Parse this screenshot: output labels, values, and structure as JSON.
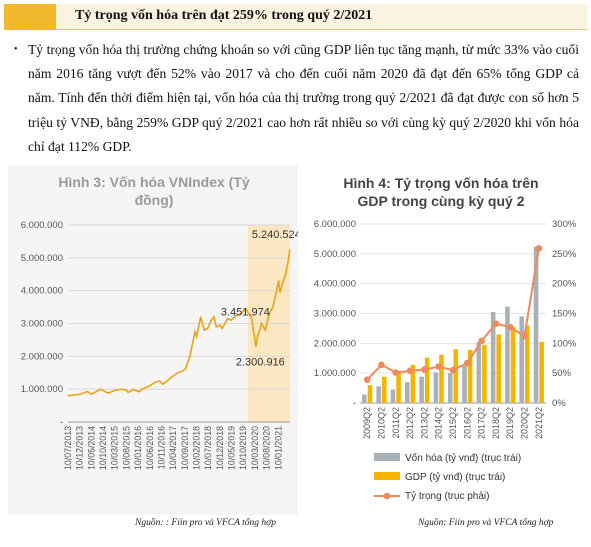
{
  "header": {
    "title": "Tỷ trọng vốn hóa trên đạt 259% trong quý 2/2021"
  },
  "paragraph": {
    "bullet": "•",
    "text": "Tỷ trọng vốn hóa thị trường chứng khoán so với cũng GDP liên tục tăng mạnh, từ mức 33% vào cuối năm 2016 tăng vượt đến 52% vào 2017 và cho đến cuối năm 2020 đã đạt đến 65% tổng GDP cả năm. Tính đến thời điểm hiện tại, vốn hóa của thị trường trong quý 2/2021 đã đạt được con số hơn 5 triệu tỷ VNĐ, bằng 259% GDP quý 2/2021 cao hơn rất nhiều so với cùng kỳ quý 2/2020 khi vốn hóa chỉ đạt 112% GDP."
  },
  "colors": {
    "accent": "#f2b82e",
    "header_bg": "#fbf3e2",
    "line_gold": "#e8a317",
    "highlight": "#fbe7c2",
    "bar_grey": "#a9b0b6",
    "bar_gold": "#f4b400",
    "ratio_line": "#ee8a5c",
    "grid": "#dcdcdc"
  },
  "sources": {
    "left": "Nguồn: : Fiin pro  và VFCA tổng hợp",
    "right": "Nguồn: Fiin pro và VFCA tổng hợp"
  },
  "chart_data": [
    {
      "type": "line",
      "title": "Hình 3: Vốn hóa VNIndex (Tỷ đồng)",
      "title_lines": [
        "Hình 3: Vốn hóa VNIndex (Tỷ",
        "đồng)"
      ],
      "ylim": [
        0,
        6000000
      ],
      "ytick_labels": [
        "-",
        "1.000.000",
        "2.000.000",
        "3.000.000",
        "4.000.000",
        "5.000.000",
        "6.000.000"
      ],
      "ytick_values": [
        0,
        1000000,
        2000000,
        3000000,
        4000000,
        5000000,
        6000000
      ],
      "xtick_labels": [
        "10/07/2013",
        "10/12/2013",
        "10/05/2014",
        "10/10/2014",
        "10/03/2015",
        "10/08/2015",
        "10/01/2016",
        "10/06/2016",
        "10/11/2016",
        "10/04/2017",
        "10/09/2017",
        "10/02/2018",
        "10/07/2018",
        "10/12/2018",
        "10/05/2019",
        "10/10/2019",
        "10/03/2020",
        "10/08/2020",
        "10/01/2021"
      ],
      "highlight_range": [
        "10/12/2019",
        "10/06/2021"
      ],
      "annotations": [
        {
          "label": "5.240.524",
          "date": "2021-06-10",
          "value": 5240524
        },
        {
          "label": "3.451.974",
          "date": "2019-11-15",
          "value": 3451974
        },
        {
          "label": "2.300.916",
          "date": "2020-03-24",
          "value": 2300916
        }
      ],
      "series": [
        {
          "points": [
            [
              "2013-07-10",
              800000
            ],
            [
              "2013-09-15",
              820000
            ],
            [
              "2013-12-10",
              840000
            ],
            [
              "2014-03-20",
              930000
            ],
            [
              "2014-05-10",
              850000
            ],
            [
              "2014-07-15",
              930000
            ],
            [
              "2014-09-05",
              1000000
            ],
            [
              "2014-10-10",
              960000
            ],
            [
              "2014-12-15",
              880000
            ],
            [
              "2015-03-10",
              960000
            ],
            [
              "2015-06-10",
              1000000
            ],
            [
              "2015-08-10",
              970000
            ],
            [
              "2015-09-01",
              900000
            ],
            [
              "2015-11-10",
              990000
            ],
            [
              "2016-01-20",
              920000
            ],
            [
              "2016-03-10",
              1010000
            ],
            [
              "2016-06-06",
              1100000
            ],
            [
              "2016-08-10",
              1200000
            ],
            [
              "2016-10-15",
              1250000
            ],
            [
              "2016-11-25",
              1150000
            ],
            [
              "2017-01-10",
              1220000
            ],
            [
              "2017-03-10",
              1350000
            ],
            [
              "2017-06-10",
              1500000
            ],
            [
              "2017-08-10",
              1550000
            ],
            [
              "2017-09-20",
              1620000
            ],
            [
              "2017-11-15",
              2000000
            ],
            [
              "2017-12-20",
              2400000
            ],
            [
              "2018-01-20",
              2750000
            ],
            [
              "2018-02-10",
              2600000
            ],
            [
              "2018-04-05",
              3200000
            ],
            [
              "2018-05-20",
              2800000
            ],
            [
              "2018-07-05",
              2850000
            ],
            [
              "2018-08-20",
              3100000
            ],
            [
              "2018-09-25",
              3200000
            ],
            [
              "2018-10-25",
              2900000
            ],
            [
              "2018-12-10",
              2950000
            ],
            [
              "2019-01-10",
              2850000
            ],
            [
              "2019-03-20",
              3150000
            ],
            [
              "2019-05-10",
              3100000
            ],
            [
              "2019-07-15",
              3250000
            ],
            [
              "2019-09-15",
              3300000
            ],
            [
              "2019-11-15",
              3451974
            ],
            [
              "2019-12-20",
              3300000
            ],
            [
              "2020-01-20",
              3250000
            ],
            [
              "2020-02-15",
              2900000
            ],
            [
              "2020-03-24",
              2300916
            ],
            [
              "2020-04-15",
              2600000
            ],
            [
              "2020-06-05",
              3000000
            ],
            [
              "2020-07-25",
              2800000
            ],
            [
              "2020-09-15",
              3300000
            ],
            [
              "2020-11-01",
              3500000
            ],
            [
              "2020-12-10",
              3900000
            ],
            [
              "2021-01-15",
              4300000
            ],
            [
              "2021-02-01",
              3950000
            ],
            [
              "2021-03-10",
              4250000
            ],
            [
              "2021-04-15",
              4500000
            ],
            [
              "2021-05-15",
              4850000
            ],
            [
              "2021-06-10",
              5240524
            ]
          ]
        }
      ]
    },
    {
      "type": "bar",
      "title": "Hình 4: Tỷ trọng vốn hóa trên GDP trong cùng kỳ quý 2",
      "title_lines": [
        "Hình 4: Tỷ  trọng vốn hóa trên",
        "GDP trong cùng kỳ quý 2"
      ],
      "categories": [
        "2009Q2",
        "2010Q2",
        "2011Q2",
        "2012Q2",
        "2013Q2",
        "2014Q2",
        "2015Q2",
        "2016Q2",
        "2017Q2",
        "2018Q2",
        "2019Q2",
        "2020Q2",
        "2021Q2"
      ],
      "ylim": [
        0,
        6000000
      ],
      "ytick_labels": [
        "-",
        "1.000.000",
        "2.000.000",
        "3.000.000",
        "4.000.000",
        "5.000.000",
        "6.000.000"
      ],
      "ytick_values": [
        0,
        1000000,
        2000000,
        3000000,
        4000000,
        5000000,
        6000000
      ],
      "y2lim": [
        0,
        300
      ],
      "y2tick_labels": [
        "0%",
        "50%",
        "100%",
        "150%",
        "200%",
        "250%",
        "300%"
      ],
      "y2tick_values": [
        0,
        50,
        100,
        150,
        200,
        250,
        300
      ],
      "series": [
        {
          "name": "Vốn hóa (tỷ vnđ) (trục trái)",
          "axis": "left",
          "values": [
            280000,
            560000,
            450000,
            700000,
            880000,
            1020000,
            1000000,
            1250000,
            2050000,
            3050000,
            3230000,
            2900000,
            5240000
          ]
        },
        {
          "name": "GDP (tỷ vnđ) (trục trái)",
          "axis": "left",
          "values": [
            600000,
            880000,
            1080000,
            1280000,
            1520000,
            1620000,
            1800000,
            1780000,
            1950000,
            2300000,
            2550000,
            2600000,
            2050000
          ]
        },
        {
          "name": "Tỷ trọng (trục phải)",
          "axis": "right",
          "values": [
            39,
            64,
            51,
            54,
            56,
            61,
            55,
            67,
            104,
            133,
            127,
            112,
            259
          ]
        }
      ],
      "legend": "bottom"
    }
  ]
}
